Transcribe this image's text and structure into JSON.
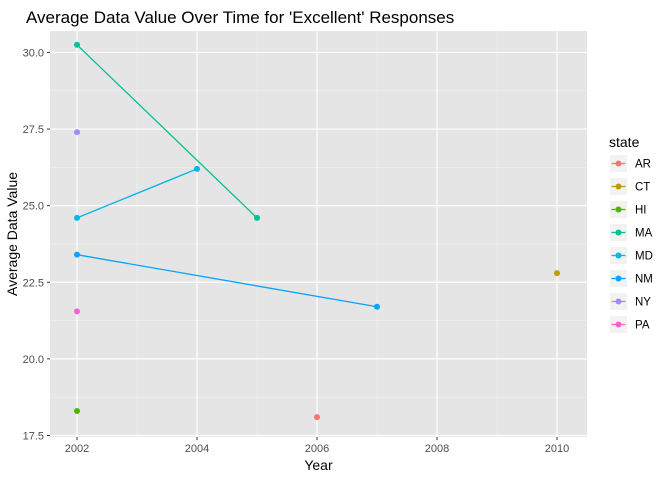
{
  "chart_data": {
    "type": "line",
    "title": "Average Data Value Over Time for 'Excellent' Responses",
    "xlabel": "Year",
    "ylabel": "Average Data Value",
    "xlim": [
      2001.55,
      2010.5
    ],
    "ylim": [
      17.45,
      30.7
    ],
    "x_ticks": [
      2002,
      2004,
      2006,
      2008,
      2010
    ],
    "x_tick_labels": [
      "2002",
      "2004",
      "2006",
      "2008",
      "2010"
    ],
    "y_ticks": [
      17.5,
      20.0,
      22.5,
      25.0,
      27.5,
      30.0
    ],
    "y_tick_labels": [
      "17.5",
      "20.0",
      "22.5",
      "25.0",
      "27.5",
      "30.0"
    ],
    "grid": true,
    "background": "#e5e5e5",
    "legend_title": "state",
    "legend_position": "right",
    "series": [
      {
        "name": "AR",
        "color": "#f8766d",
        "x": [
          2006
        ],
        "y": [
          18.1
        ]
      },
      {
        "name": "CT",
        "color": "#c49a00",
        "x": [
          2010
        ],
        "y": [
          22.8
        ]
      },
      {
        "name": "HI",
        "color": "#53b400",
        "x": [
          2002
        ],
        "y": [
          18.3
        ]
      },
      {
        "name": "MA",
        "color": "#00c094",
        "x": [
          2002,
          2005
        ],
        "y": [
          30.25,
          24.6
        ]
      },
      {
        "name": "MD",
        "color": "#00b6eb",
        "x": [
          2002,
          2004
        ],
        "y": [
          24.6,
          26.2
        ]
      },
      {
        "name": "NM",
        "color": "#06a4ff",
        "x": [
          2002,
          2007
        ],
        "y": [
          23.4,
          21.7
        ]
      },
      {
        "name": "NY",
        "color": "#a58aff",
        "x": [
          2002
        ],
        "y": [
          27.4
        ]
      },
      {
        "name": "PA",
        "color": "#fb61d7",
        "x": [
          2002
        ],
        "y": [
          21.55
        ]
      }
    ]
  }
}
